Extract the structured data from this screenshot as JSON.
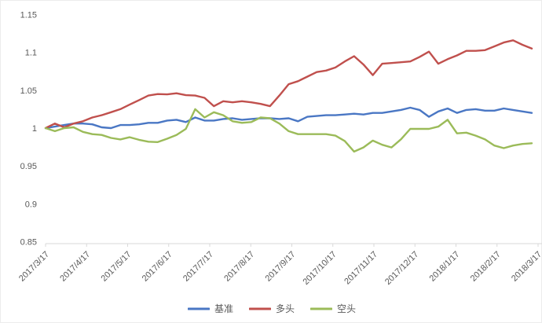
{
  "chart_data": {
    "type": "line",
    "title": "",
    "x_tick_labels": [
      "2017/3/17",
      "2017/4/17",
      "2017/5/17",
      "2017/6/17",
      "2017/7/17",
      "2017/8/17",
      "2017/9/17",
      "2017/10/17",
      "2017/11/17",
      "2017/12/17",
      "2018/1/17",
      "2018/2/17",
      "2018/3/17"
    ],
    "y_tick_labels": [
      "0.85",
      "0.9",
      "0.95",
      "1",
      "1.05",
      "1.1",
      "1.15"
    ],
    "y_tick_values": [
      0.85,
      0.9,
      0.95,
      1,
      1.05,
      1.1,
      1.15
    ],
    "ylim": [
      0.85,
      1.15
    ],
    "grid": false,
    "legend_position": "bottom",
    "axis_text_color": "#595959",
    "axis_line_color": "#D9D9D9",
    "x_frequency": "weekly",
    "series": [
      {
        "name": "基准",
        "key": "benchmark",
        "color": "#4A77C4",
        "values": [
          1.0,
          1.002,
          1.004,
          1.006,
          1.006,
          1.005,
          1.001,
          1.0,
          1.004,
          1.004,
          1.005,
          1.007,
          1.007,
          1.01,
          1.011,
          1.008,
          1.014,
          1.01,
          1.01,
          1.012,
          1.013,
          1.011,
          1.012,
          1.013,
          1.013,
          1.012,
          1.013,
          1.009,
          1.015,
          1.016,
          1.017,
          1.017,
          1.018,
          1.019,
          1.018,
          1.02,
          1.02,
          1.022,
          1.024,
          1.027,
          1.024,
          1.015,
          1.022,
          1.026,
          1.02,
          1.024,
          1.025,
          1.023,
          1.023,
          1.026,
          1.024,
          1.022,
          1.02
        ]
      },
      {
        "name": "多头",
        "key": "long",
        "color": "#C0504D",
        "values": [
          1.0,
          1.006,
          1.001,
          1.006,
          1.009,
          1.014,
          1.017,
          1.021,
          1.025,
          1.031,
          1.037,
          1.043,
          1.045,
          1.0445,
          1.046,
          1.0435,
          1.043,
          1.04,
          1.029,
          1.0355,
          1.034,
          1.0355,
          1.034,
          1.032,
          1.029,
          1.043,
          1.058,
          1.062,
          1.068,
          1.074,
          1.076,
          1.08,
          1.088,
          1.095,
          1.084,
          1.07,
          1.085,
          1.086,
          1.087,
          1.088,
          1.094,
          1.101,
          1.085,
          1.091,
          1.096,
          1.102,
          1.102,
          1.103,
          1.108,
          1.113,
          1.116,
          1.11,
          1.105
        ]
      },
      {
        "name": "空头",
        "key": "short",
        "color": "#9BBB59",
        "values": [
          1.0,
          0.996,
          1.0,
          1.001,
          0.995,
          0.992,
          0.991,
          0.987,
          0.985,
          0.988,
          0.9845,
          0.982,
          0.9815,
          0.986,
          0.991,
          0.999,
          1.025,
          1.014,
          1.021,
          1.017,
          1.009,
          1.007,
          1.008,
          1.014,
          1.013,
          1.006,
          0.996,
          0.992,
          0.992,
          0.992,
          0.992,
          0.99,
          0.983,
          0.969,
          0.9745,
          0.9835,
          0.978,
          0.9745,
          0.985,
          0.999,
          0.999,
          0.999,
          1.002,
          1.011,
          0.993,
          0.994,
          0.99,
          0.985,
          0.977,
          0.9735,
          0.977,
          0.979,
          0.98
        ]
      }
    ]
  }
}
